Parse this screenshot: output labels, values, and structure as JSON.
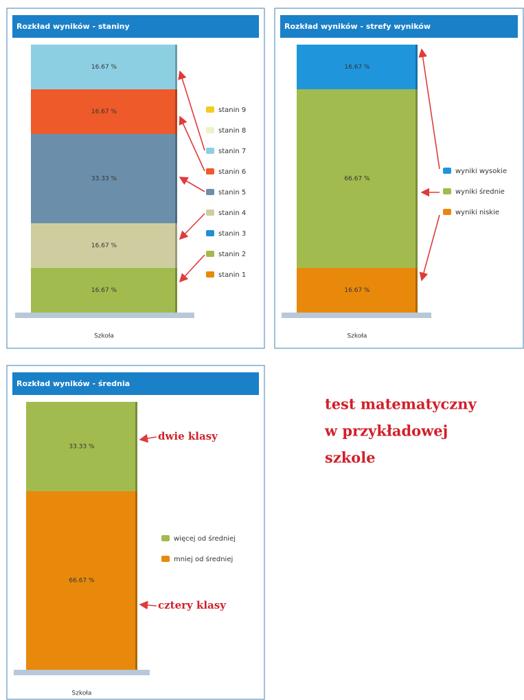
{
  "chart_data": [
    {
      "type": "stacked_bar",
      "title": "Rozkład wyników - staniny",
      "categories": [
        "Szkoła"
      ],
      "ylim": [
        0,
        100
      ],
      "series": [
        {
          "name": "stanin 1",
          "color": "#e8890c",
          "values": [
            0
          ],
          "value_labels": [
            null
          ]
        },
        {
          "name": "stanin 2",
          "color": "#a2bb4e",
          "values": [
            16.67
          ],
          "value_labels": [
            "16.67 %"
          ]
        },
        {
          "name": "stanin 3",
          "color": "#1f8fd6",
          "values": [
            0
          ],
          "value_labels": [
            null
          ]
        },
        {
          "name": "stanin 4",
          "color": "#cfcda0",
          "values": [
            16.67
          ],
          "value_labels": [
            "16.67 %"
          ]
        },
        {
          "name": "stanin 5",
          "color": "#6b8fab",
          "values": [
            33.33
          ],
          "value_labels": [
            "33.33 %"
          ]
        },
        {
          "name": "stanin 6",
          "color": "#ee5a2a",
          "values": [
            16.67
          ],
          "value_labels": [
            "16.67 %"
          ]
        },
        {
          "name": "stanin 7",
          "color": "#8ccfe3",
          "values": [
            16.67
          ],
          "value_labels": [
            "16.67 %"
          ]
        },
        {
          "name": "stanin 8",
          "color": "#eef0c8",
          "values": [
            0
          ],
          "value_labels": [
            null
          ]
        },
        {
          "name": "stanin 9",
          "color": "#f2cc1e",
          "values": [
            0
          ],
          "value_labels": [
            null
          ]
        }
      ]
    },
    {
      "type": "stacked_bar",
      "title": "Rozkład wyników - strefy wyników",
      "categories": [
        "Szkoła"
      ],
      "ylim": [
        0,
        100
      ],
      "series": [
        {
          "name": "wyniki niskie",
          "color": "#e8890c",
          "values": [
            16.67
          ],
          "value_labels": [
            "16.67 %"
          ]
        },
        {
          "name": "wyniki średnie",
          "color": "#a2bb4e",
          "values": [
            66.67
          ],
          "value_labels": [
            "66.67 %"
          ]
        },
        {
          "name": "wyniki wysokie",
          "color": "#1f96dc",
          "values": [
            16.67
          ],
          "value_labels": [
            "16.67 %"
          ]
        }
      ]
    },
    {
      "type": "stacked_bar",
      "title": "Rozkład wyników - średnia",
      "categories": [
        "Szkoła"
      ],
      "ylim": [
        0,
        100
      ],
      "series": [
        {
          "name": "mniej od średniej",
          "color": "#e8890c",
          "values": [
            66.67
          ],
          "value_labels": [
            "66.67 %"
          ]
        },
        {
          "name": "więcej od średniej",
          "color": "#a2bb4e",
          "values": [
            33.33
          ],
          "value_labels": [
            "33.33 %"
          ]
        }
      ],
      "annotations": [
        "dwie klasy",
        "cztery klasy"
      ]
    }
  ],
  "caption": [
    "test matematyczny",
    "w przykładowej",
    "szkole"
  ]
}
